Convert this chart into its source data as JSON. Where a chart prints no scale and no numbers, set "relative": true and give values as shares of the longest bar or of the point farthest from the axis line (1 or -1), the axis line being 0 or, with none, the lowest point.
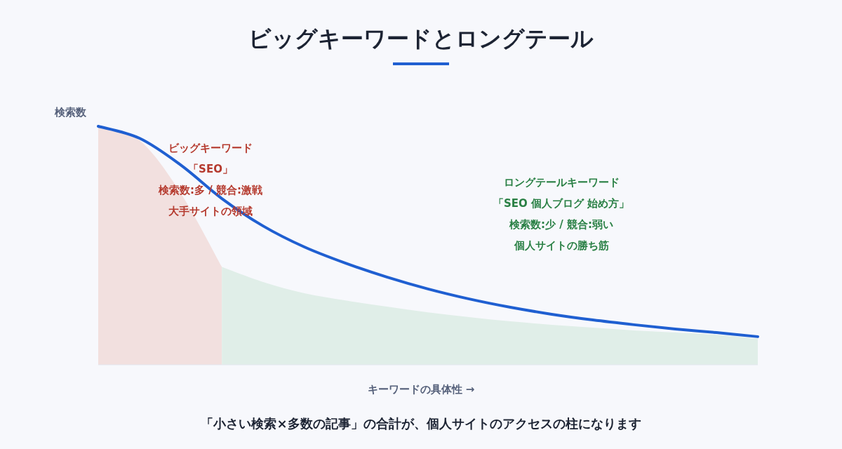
{
  "chart_data": {
    "type": "line",
    "title": "ビッグキーワードとロングテール",
    "xlabel": "キーワードの具体性 →",
    "ylabel": "検索数",
    "relative": true,
    "grid": false,
    "categories": [
      null,
      null,
      null,
      null,
      null,
      null,
      null,
      null,
      null,
      null,
      null,
      null,
      null,
      null,
      null,
      null,
      null
    ],
    "series": [
      {
        "type": "area",
        "color": "#f2e0df",
        "values": [
          1.0,
          0.941,
          0.72,
          0.41,
          null,
          null,
          null,
          null,
          null,
          null,
          null,
          null,
          null,
          null,
          null,
          null,
          null
        ]
      },
      {
        "type": "area",
        "color": "#e0eee8",
        "values": [
          null,
          null,
          null,
          0.41,
          0.347,
          0.3,
          0.27,
          0.244,
          0.22,
          0.2,
          0.182,
          0.168,
          0.156,
          0.144,
          0.135,
          0.126,
          0.11
        ]
      },
      {
        "color": "#1f5fd1",
        "values": [
          1.0,
          0.95,
          0.838,
          0.697,
          0.582,
          0.494,
          0.426,
          0.368,
          0.318,
          0.276,
          0.241,
          0.212,
          0.188,
          0.168,
          0.15,
          0.135,
          0.118
        ]
      }
    ],
    "annotations": [
      "ビッグキーワード",
      "「SEO」",
      "検索数:多 / 競合:激戦",
      "大手サイトの領域",
      "ロングテールキーワード",
      "「SEO 個人ブログ 始め方」",
      "検索数:少 / 競合:弱い",
      "個人サイトの勝ち筋",
      "「小さい検索×多数の記事」の合計が、個人サイトのアクセスの柱になります"
    ]
  }
}
